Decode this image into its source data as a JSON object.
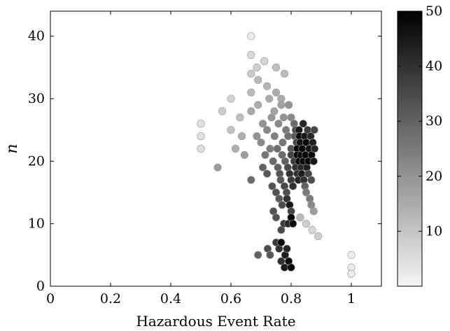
{
  "chart_data": {
    "type": "scatter",
    "title": "",
    "xlabel": "Hazardous Event Rate",
    "ylabel": "n",
    "xlim": [
      0,
      1.1
    ],
    "ylim": [
      0,
      44
    ],
    "xticks": [
      0,
      0.2,
      0.4,
      0.6,
      0.8,
      1
    ],
    "xtick_labels": [
      "0",
      "0.2",
      "0.4",
      "0.6",
      "0.8",
      "1"
    ],
    "yticks": [
      0,
      10,
      20,
      30,
      40
    ],
    "ytick_labels": [
      "0",
      "10",
      "20",
      "30",
      "40"
    ],
    "grid": false,
    "colorbar": {
      "min": 0,
      "max": 50,
      "ticks": [
        10,
        20,
        30,
        40,
        50
      ],
      "tick_labels": [
        "10",
        "20",
        "30",
        "40",
        "50"
      ],
      "colormap": "gray (white = low, black = high)",
      "low_color": "#f5f5f5",
      "high_color": "#000000"
    },
    "points": [
      {
        "x": 0.5,
        "y": 22,
        "c": 5
      },
      {
        "x": 0.5,
        "y": 24,
        "c": 4
      },
      {
        "x": 0.5,
        "y": 26,
        "c": 4
      },
      {
        "x": 0.556,
        "y": 19,
        "c": 18
      },
      {
        "x": 0.571,
        "y": 28,
        "c": 8
      },
      {
        "x": 0.6,
        "y": 25,
        "c": 10
      },
      {
        "x": 0.6,
        "y": 30,
        "c": 7
      },
      {
        "x": 0.615,
        "y": 22,
        "c": 14
      },
      {
        "x": 0.63,
        "y": 27,
        "c": 11
      },
      {
        "x": 0.636,
        "y": 24,
        "c": 14
      },
      {
        "x": 0.645,
        "y": 21,
        "c": 18
      },
      {
        "x": 0.667,
        "y": 40,
        "c": 2
      },
      {
        "x": 0.667,
        "y": 37,
        "c": 6
      },
      {
        "x": 0.667,
        "y": 34,
        "c": 9
      },
      {
        "x": 0.667,
        "y": 31,
        "c": 12
      },
      {
        "x": 0.667,
        "y": 28,
        "c": 16
      },
      {
        "x": 0.667,
        "y": 17,
        "c": 28
      },
      {
        "x": 0.686,
        "y": 35,
        "c": 8
      },
      {
        "x": 0.686,
        "y": 24,
        "c": 20
      },
      {
        "x": 0.69,
        "y": 33,
        "c": 12
      },
      {
        "x": 0.69,
        "y": 29,
        "c": 15
      },
      {
        "x": 0.69,
        "y": 5,
        "c": 30
      },
      {
        "x": 0.7,
        "y": 23,
        "c": 22
      },
      {
        "x": 0.706,
        "y": 26,
        "c": 20
      },
      {
        "x": 0.706,
        "y": 19,
        "c": 30
      },
      {
        "x": 0.711,
        "y": 36,
        "c": 7
      },
      {
        "x": 0.714,
        "y": 21,
        "c": 26
      },
      {
        "x": 0.72,
        "y": 25,
        "c": 22
      },
      {
        "x": 0.72,
        "y": 32,
        "c": 13
      },
      {
        "x": 0.72,
        "y": 18,
        "c": 32
      },
      {
        "x": 0.722,
        "y": 6,
        "c": 34
      },
      {
        "x": 0.727,
        "y": 30,
        "c": 15
      },
      {
        "x": 0.73,
        "y": 22,
        "c": 25
      },
      {
        "x": 0.73,
        "y": 5,
        "c": 32
      },
      {
        "x": 0.735,
        "y": 27,
        "c": 19
      },
      {
        "x": 0.737,
        "y": 16,
        "c": 33
      },
      {
        "x": 0.74,
        "y": 20,
        "c": 28
      },
      {
        "x": 0.741,
        "y": 12,
        "c": 33
      },
      {
        "x": 0.744,
        "y": 28,
        "c": 17
      },
      {
        "x": 0.745,
        "y": 24,
        "c": 24
      },
      {
        "x": 0.75,
        "y": 35,
        "c": 11
      },
      {
        "x": 0.75,
        "y": 31,
        "c": 15
      },
      {
        "x": 0.75,
        "y": 11,
        "c": 33
      },
      {
        "x": 0.75,
        "y": 7,
        "c": 38
      },
      {
        "x": 0.75,
        "y": 15,
        "c": 33
      },
      {
        "x": 0.754,
        "y": 22,
        "c": 28
      },
      {
        "x": 0.756,
        "y": 19,
        "c": 30
      },
      {
        "x": 0.758,
        "y": 26,
        "c": 22
      },
      {
        "x": 0.76,
        "y": 14,
        "c": 32
      },
      {
        "x": 0.76,
        "y": 6,
        "c": 40
      },
      {
        "x": 0.762,
        "y": 18,
        "c": 33
      },
      {
        "x": 0.765,
        "y": 17,
        "c": 32
      },
      {
        "x": 0.767,
        "y": 30,
        "c": 15
      },
      {
        "x": 0.767,
        "y": 29,
        "c": 17
      },
      {
        "x": 0.767,
        "y": 9,
        "c": 35
      },
      {
        "x": 0.767,
        "y": 7,
        "c": 48
      },
      {
        "x": 0.767,
        "y": 4,
        "c": 40
      },
      {
        "x": 0.77,
        "y": 13,
        "c": 34
      },
      {
        "x": 0.77,
        "y": 21,
        "c": 28
      },
      {
        "x": 0.772,
        "y": 23,
        "c": 26
      },
      {
        "x": 0.775,
        "y": 27,
        "c": 20
      },
      {
        "x": 0.776,
        "y": 10,
        "c": 38
      },
      {
        "x": 0.778,
        "y": 34,
        "c": 12
      },
      {
        "x": 0.778,
        "y": 16,
        "c": 35
      },
      {
        "x": 0.778,
        "y": 3,
        "c": 45
      },
      {
        "x": 0.78,
        "y": 20,
        "c": 30
      },
      {
        "x": 0.78,
        "y": 5,
        "c": 44
      },
      {
        "x": 0.783,
        "y": 25,
        "c": 25
      },
      {
        "x": 0.785,
        "y": 15,
        "c": 34
      },
      {
        "x": 0.786,
        "y": 6,
        "c": 42
      },
      {
        "x": 0.786,
        "y": 14,
        "c": 40
      },
      {
        "x": 0.789,
        "y": 19,
        "c": 35
      },
      {
        "x": 0.79,
        "y": 24,
        "c": 27
      },
      {
        "x": 0.79,
        "y": 10,
        "c": 42
      },
      {
        "x": 0.792,
        "y": 29,
        "c": 20
      },
      {
        "x": 0.792,
        "y": 4,
        "c": 48
      },
      {
        "x": 0.795,
        "y": 18,
        "c": 40
      },
      {
        "x": 0.795,
        "y": 13,
        "c": 45
      },
      {
        "x": 0.8,
        "y": 3,
        "c": 50
      },
      {
        "x": 0.8,
        "y": 12,
        "c": 36
      },
      {
        "x": 0.8,
        "y": 22,
        "c": 33
      },
      {
        "x": 0.8,
        "y": 27,
        "c": 22
      },
      {
        "x": 0.8,
        "y": 17,
        "c": 38
      },
      {
        "x": 0.8,
        "y": 11,
        "c": 50
      },
      {
        "x": 0.8,
        "y": 21,
        "c": 36
      },
      {
        "x": 0.806,
        "y": 10,
        "c": 47
      },
      {
        "x": 0.806,
        "y": 16,
        "c": 40
      },
      {
        "x": 0.81,
        "y": 26,
        "c": 28
      },
      {
        "x": 0.81,
        "y": 20,
        "c": 38
      },
      {
        "x": 0.812,
        "y": 24,
        "c": 32
      },
      {
        "x": 0.815,
        "y": 25,
        "c": 34
      },
      {
        "x": 0.815,
        "y": 19,
        "c": 40
      },
      {
        "x": 0.818,
        "y": 23,
        "c": 36
      },
      {
        "x": 0.82,
        "y": 22,
        "c": 50
      },
      {
        "x": 0.82,
        "y": 18,
        "c": 40
      },
      {
        "x": 0.82,
        "y": 21,
        "c": 48
      },
      {
        "x": 0.824,
        "y": 17,
        "c": 42
      },
      {
        "x": 0.826,
        "y": 20,
        "c": 49
      },
      {
        "x": 0.826,
        "y": 25,
        "c": 45
      },
      {
        "x": 0.828,
        "y": 24,
        "c": 50
      },
      {
        "x": 0.83,
        "y": 23,
        "c": 46
      },
      {
        "x": 0.83,
        "y": 11,
        "c": 12
      },
      {
        "x": 0.833,
        "y": 19,
        "c": 42
      },
      {
        "x": 0.833,
        "y": 21,
        "c": 50
      },
      {
        "x": 0.835,
        "y": 18,
        "c": 44
      },
      {
        "x": 0.837,
        "y": 22,
        "c": 48
      },
      {
        "x": 0.84,
        "y": 26,
        "c": 42
      },
      {
        "x": 0.84,
        "y": 20,
        "c": 50
      },
      {
        "x": 0.842,
        "y": 17,
        "c": 40
      },
      {
        "x": 0.845,
        "y": 24,
        "c": 46
      },
      {
        "x": 0.846,
        "y": 16,
        "c": 30
      },
      {
        "x": 0.848,
        "y": 21,
        "c": 49
      },
      {
        "x": 0.85,
        "y": 23,
        "c": 48
      },
      {
        "x": 0.85,
        "y": 15,
        "c": 25
      },
      {
        "x": 0.85,
        "y": 10,
        "c": 8
      },
      {
        "x": 0.852,
        "y": 19,
        "c": 44
      },
      {
        "x": 0.855,
        "y": 25,
        "c": 38
      },
      {
        "x": 0.857,
        "y": 20,
        "c": 50
      },
      {
        "x": 0.857,
        "y": 18,
        "c": 36
      },
      {
        "x": 0.86,
        "y": 22,
        "c": 46
      },
      {
        "x": 0.862,
        "y": 14,
        "c": 25
      },
      {
        "x": 0.865,
        "y": 24,
        "c": 42
      },
      {
        "x": 0.867,
        "y": 17,
        "c": 34
      },
      {
        "x": 0.867,
        "y": 13,
        "c": 22
      },
      {
        "x": 0.868,
        "y": 21,
        "c": 48
      },
      {
        "x": 0.87,
        "y": 9,
        "c": 6
      },
      {
        "x": 0.872,
        "y": 23,
        "c": 44
      },
      {
        "x": 0.875,
        "y": 12,
        "c": 18
      },
      {
        "x": 0.875,
        "y": 20,
        "c": 45
      },
      {
        "x": 0.877,
        "y": 25,
        "c": 36
      },
      {
        "x": 0.878,
        "y": 22,
        "c": 42
      },
      {
        "x": 0.89,
        "y": 8,
        "c": 8
      },
      {
        "x": 1.0,
        "y": 5,
        "c": 2
      },
      {
        "x": 1.0,
        "y": 3,
        "c": 2
      },
      {
        "x": 1.0,
        "y": 2,
        "c": 2
      }
    ]
  }
}
